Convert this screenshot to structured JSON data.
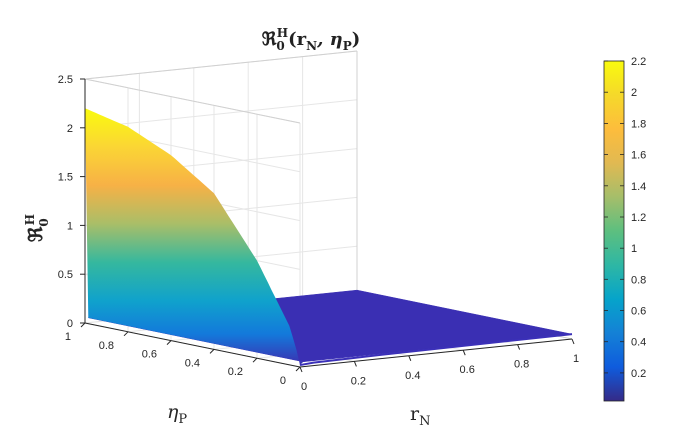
{
  "chart_data": {
    "type": "surface",
    "title": "ℜ₀ᴴ(rN, ηP)",
    "title_parts": {
      "symbol": "ℜ",
      "sub": "0",
      "sup": "H",
      "args": "(r",
      "arg1_sub": "N",
      "sep": ",  η",
      "arg2_sub": "P",
      "close": ")"
    },
    "xlabel": {
      "base": "r",
      "sub": "N"
    },
    "ylabel": {
      "base": "η",
      "sub": "P"
    },
    "zlabel": {
      "base": "ℜ",
      "sub": "0",
      "sup": "H"
    },
    "x_ticks": [
      "0",
      "0.2",
      "0.4",
      "0.6",
      "0.8",
      "1"
    ],
    "y_ticks": [
      "0",
      "0.2",
      "0.4",
      "0.6",
      "0.8",
      "1"
    ],
    "z_ticks": [
      "0",
      "0.5",
      "1",
      "1.5",
      "2",
      "2.5"
    ],
    "xlim": [
      0,
      1
    ],
    "ylim": [
      0,
      1
    ],
    "zlim": [
      0,
      2.5
    ],
    "surface_profile": {
      "description_values": "R0 at rN=0 rises steeply with ηP; for rN>0 it is near zero",
      "edge_rN_0": {
        "eta_P": [
          0,
          0.02,
          0.05,
          0.1,
          0.2,
          0.4,
          0.6,
          0.8,
          1.0
        ],
        "R0": [
          0.02,
          0.2,
          0.4,
          0.6,
          1.0,
          1.6,
          1.9,
          2.1,
          2.2
        ]
      },
      "plateau_value": 0.05
    },
    "colorbar": {
      "colormap": "parula",
      "ticks": [
        "0.2",
        "0.4",
        "0.6",
        "0.8",
        "1",
        "1.2",
        "1.4",
        "1.6",
        "1.8",
        "2",
        "2.2"
      ],
      "range": [
        0.02,
        2.2
      ]
    },
    "grid": true
  }
}
